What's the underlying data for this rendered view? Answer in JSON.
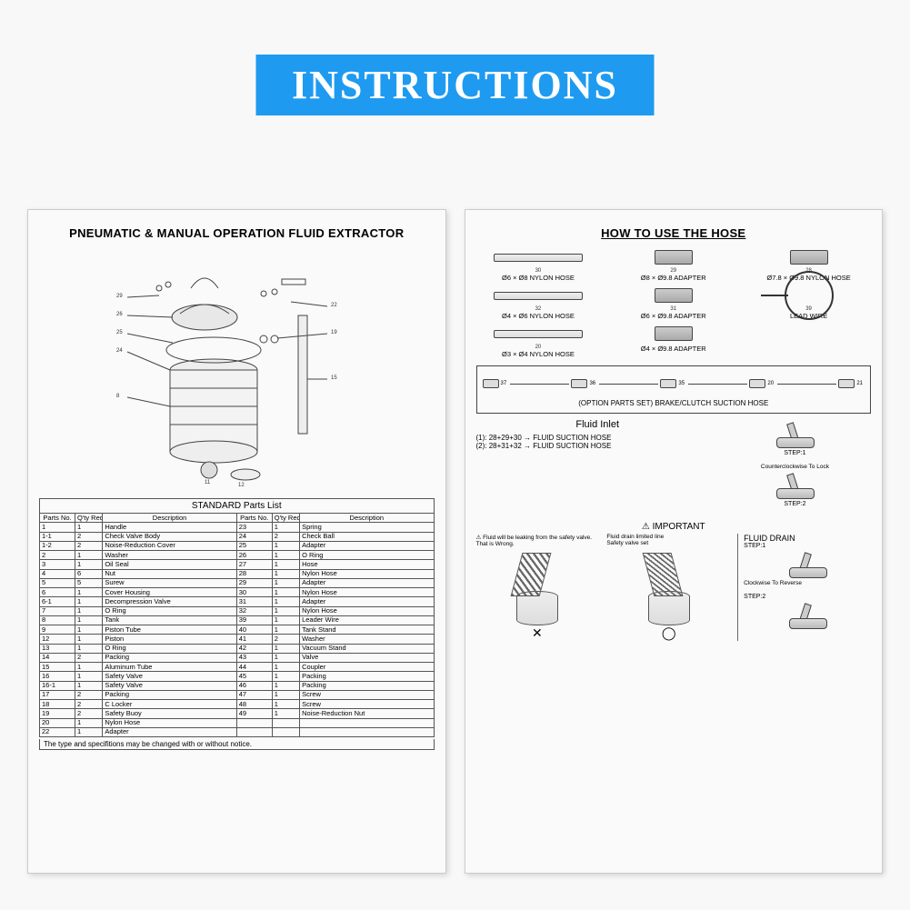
{
  "banner": "INSTRUCTIONS",
  "left": {
    "title": "PNEUMATIC & MANUAL OPERATION FLUID EXTRACTOR",
    "table_title": "STANDARD  Parts List",
    "headers": [
      "Parts No.",
      "Q'ty Req",
      "Description",
      "Parts No.",
      "Q'ty Req",
      "Description"
    ],
    "rows": [
      [
        "1",
        "1",
        "Handle",
        "23",
        "1",
        "Spring"
      ],
      [
        "1-1",
        "2",
        "Check Valve Body",
        "24",
        "2",
        "Check Ball"
      ],
      [
        "1-2",
        "2",
        "Noise-Reduction Cover",
        "25",
        "1",
        "Adapter"
      ],
      [
        "2",
        "1",
        "Washer",
        "26",
        "1",
        "O Ring"
      ],
      [
        "3",
        "1",
        "Oil Seal",
        "27",
        "1",
        "Hose"
      ],
      [
        "4",
        "6",
        "Nut",
        "28",
        "1",
        "Nylon Hose"
      ],
      [
        "5",
        "5",
        "Surew",
        "29",
        "1",
        "Adapter"
      ],
      [
        "6",
        "1",
        "Cover Housing",
        "30",
        "1",
        "Nylon Hose"
      ],
      [
        "6-1",
        "1",
        "Decompression Valve",
        "31",
        "1",
        "Adapter"
      ],
      [
        "7",
        "1",
        "O Ring",
        "32",
        "1",
        "Nylon Hose"
      ],
      [
        "8",
        "1",
        "Tank",
        "39",
        "1",
        "Leader Wire"
      ],
      [
        "9",
        "1",
        "Piston Tube",
        "40",
        "1",
        "Tank Stand"
      ],
      [
        "12",
        "1",
        "Piston",
        "41",
        "2",
        "Washer"
      ],
      [
        "13",
        "1",
        "O Ring",
        "42",
        "1",
        "Vacuum Stand"
      ],
      [
        "14",
        "2",
        "Packing",
        "43",
        "1",
        "Valve"
      ],
      [
        "15",
        "1",
        "Aluminum Tube",
        "44",
        "1",
        "Coupler"
      ],
      [
        "16",
        "1",
        "Safety Valve",
        "45",
        "1",
        "Packing"
      ],
      [
        "16-1",
        "1",
        "Safety Valve",
        "46",
        "1",
        "Packing"
      ],
      [
        "17",
        "2",
        "Packing",
        "47",
        "1",
        "Screw"
      ],
      [
        "18",
        "2",
        "C Locker",
        "48",
        "1",
        "Screw"
      ],
      [
        "19",
        "2",
        "Safety Buoy",
        "49",
        "1",
        "Noise-Reduction Nut"
      ],
      [
        "20",
        "1",
        "Nylon Hose",
        "",
        "",
        ""
      ],
      [
        "22",
        "1",
        "Adapter",
        "",
        "",
        ""
      ]
    ],
    "footnote": "The type and specifitions may be changed with or without notice."
  },
  "right": {
    "title": "HOW  TO  USE  THE  HOSE",
    "hose_items": [
      {
        "num": "30",
        "label": "Ø6 × Ø8 NYLON HOSE",
        "type": "bar"
      },
      {
        "num": "29",
        "label": "Ø8 × Ø9.8 ADAPTER",
        "type": "plug"
      },
      {
        "num": "28",
        "label": "Ø7.8 × Ø9.8 NYLON HOSE",
        "type": "plug"
      },
      {
        "num": "32",
        "label": "Ø4 × Ø6 NYLON HOSE",
        "type": "bar"
      },
      {
        "num": "31",
        "label": "Ø6 × Ø9.8 ADAPTER",
        "type": "plug"
      },
      {
        "num": "39",
        "label": "LEAD WIRE",
        "type": "ring"
      },
      {
        "num": "20",
        "label": "Ø3 × Ø4 NYLON HOSE",
        "type": "bar"
      },
      {
        "num": "",
        "label": "Ø4 × Ø9.8 ADAPTER",
        "type": "plug"
      },
      {
        "num": "",
        "label": "",
        "type": "blank"
      }
    ],
    "assembly_numbers": [
      "37",
      "36",
      "35",
      "20",
      "21"
    ],
    "option_label": "(OPTION PARTS SET) BRAKE/CLUTCH SUCTION HOSE",
    "fluid_inlet_title": "Fluid Inlet",
    "fluid_inlet_lines": [
      "(1): 28+29+30 → FLUID SUCTION HOSE",
      "(2): 28+31+32 → FLUID SUCTION HOSE"
    ],
    "lock_note": "Counterclockwise To Lock",
    "steps_top": [
      "STEP:1",
      "STEP:2"
    ],
    "important_title": "⚠ IMPORTANT",
    "important_note_left": "Fluid will be leaking from the safety valve. That is Wrong.",
    "important_note_right1": "Fluid drain limited line",
    "important_note_right2": "Safety valve set",
    "xo": [
      "✕",
      "◯"
    ],
    "drain_title": "FLUID DRAIN",
    "drain_steps": [
      "STEP:1",
      "STEP:2"
    ],
    "drain_note": "Clockwise To Reverse"
  }
}
